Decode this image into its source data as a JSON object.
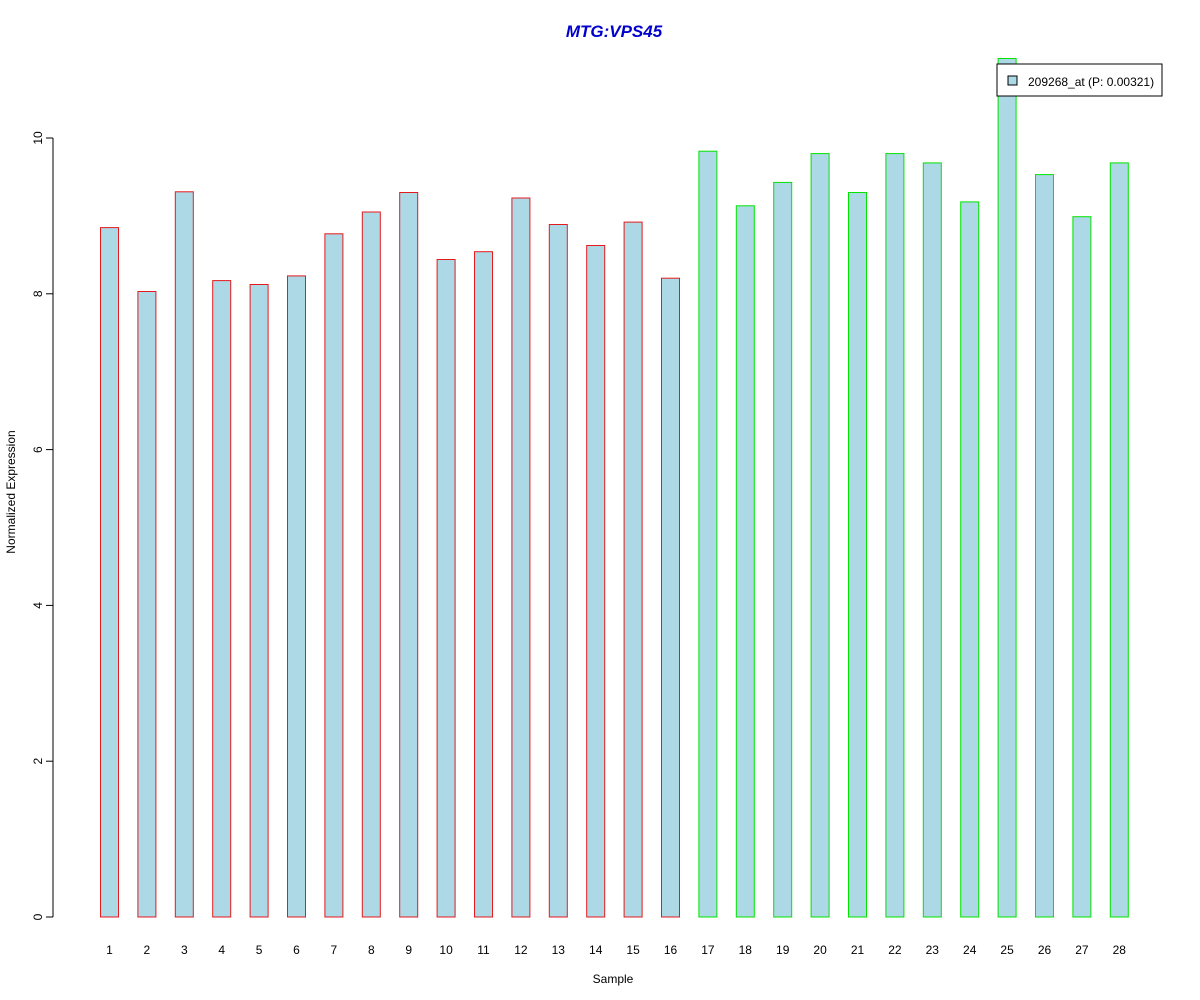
{
  "chart_data": {
    "type": "bar",
    "title": "MTG:VPS45",
    "xlabel": "Sample",
    "ylabel": "Normalized Expression",
    "categories": [
      "1",
      "2",
      "3",
      "4",
      "5",
      "6",
      "7",
      "8",
      "9",
      "10",
      "11",
      "12",
      "13",
      "14",
      "15",
      "16",
      "17",
      "18",
      "19",
      "20",
      "21",
      "22",
      "23",
      "24",
      "25",
      "26",
      "27",
      "28"
    ],
    "series": [
      {
        "name": "209268_at (P: 0.00321)",
        "values": [
          8.85,
          8.03,
          9.31,
          8.17,
          8.12,
          8.23,
          8.77,
          9.05,
          9.3,
          8.44,
          8.54,
          9.23,
          8.89,
          8.62,
          8.92,
          8.2,
          9.83,
          9.13,
          9.43,
          9.8,
          9.3,
          9.8,
          9.68,
          9.18,
          11.02,
          9.53,
          8.99,
          9.68
        ]
      }
    ],
    "groups": [
      {
        "from_index": 0,
        "to_index": 15,
        "border_color": "#e41a1c"
      },
      {
        "from_index": 16,
        "to_index": 27,
        "border_color": "#00e400"
      }
    ],
    "ylim": [
      0,
      11.05
    ],
    "yticks": [
      "0",
      "2",
      "4",
      "6",
      "8",
      "10"
    ],
    "bar_fill": "#add8e6",
    "title_color": "#0000cd",
    "grid": false,
    "legend_position": "top-right"
  }
}
